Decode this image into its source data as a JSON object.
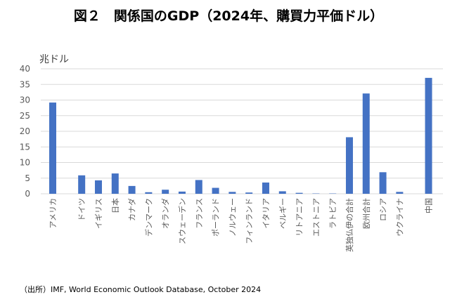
{
  "chart_data": {
    "type": "bar",
    "title": "図２　関係国のGDP（2024年、購買力平価ドル）",
    "ylabel": "兆ドル",
    "xlabel": "",
    "ylim": [
      0,
      40
    ],
    "yticks": [
      0,
      5,
      10,
      15,
      20,
      25,
      30,
      35,
      40
    ],
    "grid": true,
    "categories": [
      "アメリカ",
      "",
      "ドイツ",
      "イギリス",
      "日本",
      "カナダ",
      "デンマーク",
      "オランダ",
      "スウェーデン",
      "フランス",
      "ポーランド",
      "ノルウェー",
      "フィンランド",
      "イタリア",
      "ベルギー",
      "リトアニア",
      "エストニア",
      "ラトビア",
      "英独仏伊の合計",
      "欧州合計",
      "ロシア",
      "ウクライナ",
      "",
      "中国"
    ],
    "values": [
      29.2,
      null,
      5.9,
      4.3,
      6.5,
      2.5,
      0.5,
      1.3,
      0.7,
      4.4,
      1.9,
      0.6,
      0.4,
      3.6,
      0.8,
      0.3,
      0.1,
      0.1,
      18.1,
      32.1,
      6.9,
      0.6,
      null,
      37.1
    ],
    "color": "#4472c4",
    "source": "（出所）IMF, World Economic Outlook Database, October 2024"
  }
}
